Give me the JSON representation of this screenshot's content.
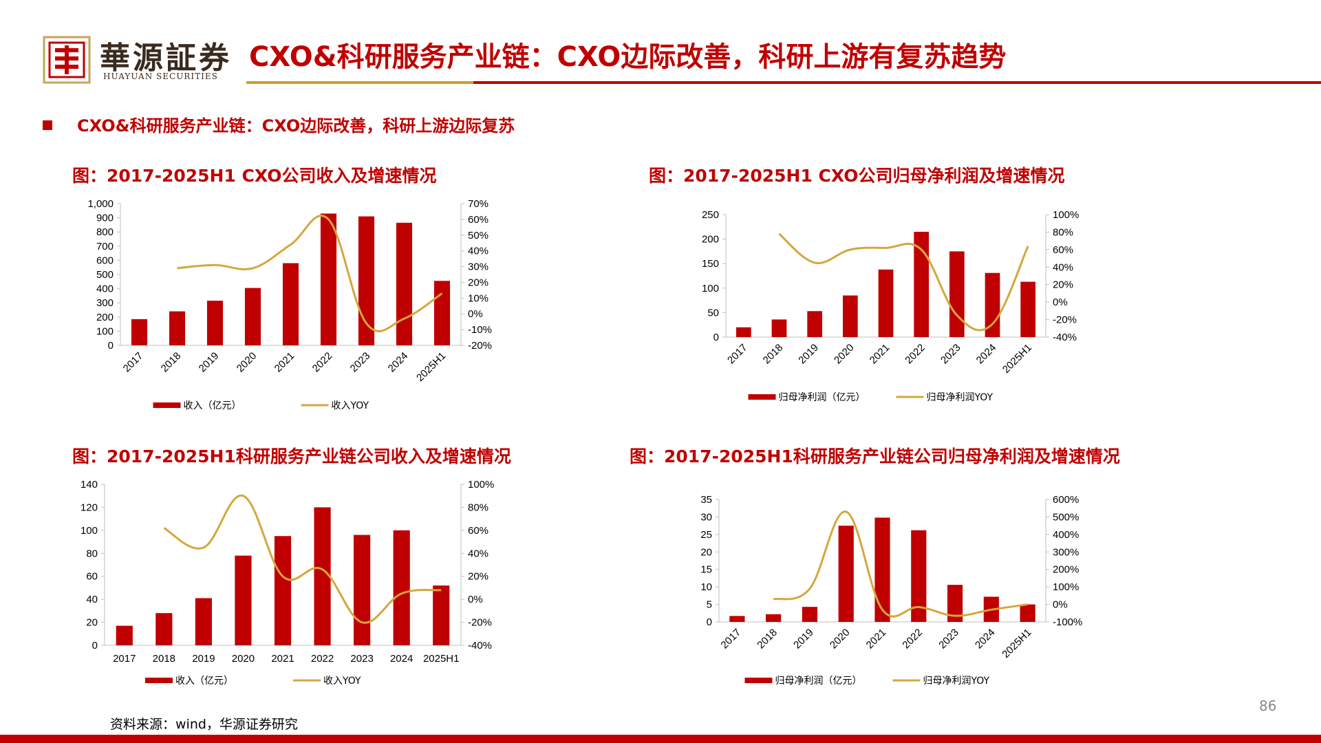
{
  "header": {
    "company_name": "華源証券",
    "company_sub": "HUAYUAN SECURITIES",
    "title": "CXO&科研服务产业链：CXO边际改善，科研上游有复苏趋势"
  },
  "section_heading": "CXO&科研服务产业链：CXO边际改善，科研上游边际复苏",
  "colors": {
    "bar": "#c00000",
    "line": "#d4a73c",
    "title": "#c00000"
  },
  "source_note": "资料来源：wind，华源证券研究",
  "page_number": "86",
  "chart_data": [
    {
      "id": "cxo-revenue",
      "type": "bar",
      "title": "图：2017-2025H1 CXO公司收入及增速情况",
      "categories": [
        "2017",
        "2018",
        "2019",
        "2020",
        "2021",
        "2022",
        "2023",
        "2024",
        "2025H1"
      ],
      "rotate_labels": true,
      "series": [
        {
          "name": "收入（亿元）",
          "type": "bar",
          "axis": "left",
          "values": [
            185,
            240,
            315,
            405,
            580,
            930,
            910,
            865,
            455
          ]
        },
        {
          "name": "收入YOY",
          "type": "line",
          "axis": "right",
          "values": [
            null,
            29,
            31,
            29,
            44,
            60,
            -6,
            -3,
            13
          ]
        }
      ],
      "y_left": {
        "min": 0,
        "max": 1000,
        "ticks": [
          "0",
          "100",
          "200",
          "300",
          "400",
          "500",
          "600",
          "700",
          "800",
          "900",
          "1,000"
        ]
      },
      "y_right": {
        "min": -20,
        "max": 70,
        "ticks": [
          "-20%",
          "-10%",
          "0%",
          "10%",
          "20%",
          "30%",
          "40%",
          "50%",
          "60%",
          "70%"
        ]
      },
      "legend": [
        "收入（亿元）",
        "收入YOY"
      ]
    },
    {
      "id": "cxo-net-profit",
      "type": "bar",
      "title": "图：2017-2025H1 CXO公司归母净利润及增速情况",
      "categories": [
        "2017",
        "2018",
        "2019",
        "2020",
        "2021",
        "2022",
        "2023",
        "2024",
        "2025H1"
      ],
      "rotate_labels": true,
      "series": [
        {
          "name": "归母净利润（亿元）",
          "type": "bar",
          "axis": "left",
          "values": [
            20,
            36,
            53,
            85,
            138,
            215,
            175,
            131,
            113
          ]
        },
        {
          "name": "归母净利润YOY",
          "type": "line",
          "axis": "right",
          "values": [
            null,
            78,
            45,
            60,
            62,
            60,
            -15,
            -25,
            64
          ]
        }
      ],
      "y_left": {
        "min": 0,
        "max": 250,
        "ticks": [
          "0",
          "50",
          "100",
          "150",
          "200",
          "250"
        ]
      },
      "y_right": {
        "min": -40,
        "max": 100,
        "ticks": [
          "-40%",
          "-20%",
          "0%",
          "20%",
          "40%",
          "60%",
          "80%",
          "100%"
        ]
      },
      "legend": [
        "归母净利润（亿元）",
        "归母净利润YOY"
      ]
    },
    {
      "id": "research-revenue",
      "type": "bar",
      "title": "图：2017-2025H1科研服务产业链公司收入及增速情况",
      "categories": [
        "2017",
        "2018",
        "2019",
        "2020",
        "2021",
        "2022",
        "2023",
        "2024",
        "2025H1"
      ],
      "rotate_labels": false,
      "series": [
        {
          "name": "收入（亿元）",
          "type": "bar",
          "axis": "left",
          "values": [
            17,
            28,
            41,
            78,
            95,
            120,
            96,
            100,
            52
          ]
        },
        {
          "name": "收入YOY",
          "type": "line",
          "axis": "right",
          "values": [
            null,
            62,
            45,
            90,
            20,
            26,
            -20,
            5,
            8
          ]
        }
      ],
      "y_left": {
        "min": 0,
        "max": 140,
        "ticks": [
          "0",
          "20",
          "40",
          "60",
          "80",
          "100",
          "120",
          "140"
        ]
      },
      "y_right": {
        "min": -40,
        "max": 100,
        "ticks": [
          "-40%",
          "-20%",
          "0%",
          "20%",
          "40%",
          "60%",
          "80%",
          "100%"
        ]
      },
      "legend": [
        "收入（亿元）",
        "收入YOY"
      ]
    },
    {
      "id": "research-net-profit",
      "type": "bar",
      "title": "图：2017-2025H1科研服务产业链公司归母净利润及增速情况",
      "categories": [
        "2017",
        "2018",
        "2019",
        "2020",
        "2021",
        "2022",
        "2023",
        "2024",
        "2025H1"
      ],
      "rotate_labels": true,
      "series": [
        {
          "name": "归母净利润（亿元）",
          "type": "bar",
          "axis": "left",
          "values": [
            1.7,
            2.2,
            4.3,
            27.5,
            29.8,
            26.2,
            10.6,
            7.2,
            5.0
          ]
        },
        {
          "name": "归母净利润YOY",
          "type": "line",
          "axis": "right",
          "values": [
            null,
            30,
            90,
            530,
            -30,
            -15,
            -65,
            -30,
            0
          ]
        }
      ],
      "y_left": {
        "min": 0,
        "max": 35,
        "ticks": [
          "0",
          "5",
          "10",
          "15",
          "20",
          "25",
          "30",
          "35"
        ]
      },
      "y_right": {
        "min": -100,
        "max": 600,
        "ticks": [
          "-100%",
          "0%",
          "100%",
          "200%",
          "300%",
          "400%",
          "500%",
          "600%"
        ]
      },
      "legend": [
        "归母净利润（亿元）",
        "归母净利润YOY"
      ]
    }
  ]
}
